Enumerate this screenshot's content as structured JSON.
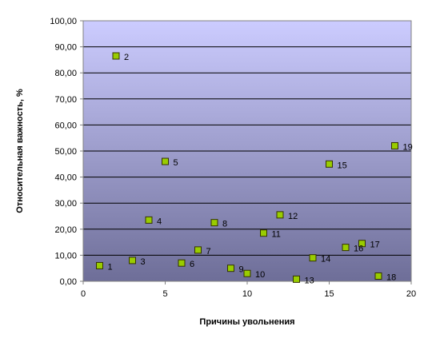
{
  "chart_data": {
    "type": "scatter",
    "xlabel": "Причины увольнения",
    "ylabel": "Относительная важность, %",
    "xlim": [
      0,
      20
    ],
    "ylim": [
      0,
      100
    ],
    "x_ticks": [
      "0",
      "5",
      "10",
      "15",
      "20"
    ],
    "y_ticks": [
      "0,00",
      "10,00",
      "20,00",
      "30,00",
      "40,00",
      "50,00",
      "60,00",
      "70,00",
      "80,00",
      "90,00",
      "100,00"
    ],
    "grid": true,
    "legend": "none",
    "colors": {
      "marker_fill": "#99CC00",
      "marker_stroke": "#333300",
      "plot_top": "#CCCCFF",
      "plot_bottom": "#6E6E98",
      "gridline": "#000000"
    },
    "points": [
      {
        "x": 1,
        "y": 6.0,
        "label": "1"
      },
      {
        "x": 2,
        "y": 86.5,
        "label": "2"
      },
      {
        "x": 3,
        "y": 8.0,
        "label": "3"
      },
      {
        "x": 4,
        "y": 23.5,
        "label": "4"
      },
      {
        "x": 5,
        "y": 46.0,
        "label": "5"
      },
      {
        "x": 6,
        "y": 7.0,
        "label": "6"
      },
      {
        "x": 7,
        "y": 12.0,
        "label": "7"
      },
      {
        "x": 8,
        "y": 22.5,
        "label": "8"
      },
      {
        "x": 9,
        "y": 5.0,
        "label": "9"
      },
      {
        "x": 10,
        "y": 3.0,
        "label": "10"
      },
      {
        "x": 11,
        "y": 18.5,
        "label": "11"
      },
      {
        "x": 12,
        "y": 25.5,
        "label": "12"
      },
      {
        "x": 13,
        "y": 0.8,
        "label": "13"
      },
      {
        "x": 14,
        "y": 9.0,
        "label": "14"
      },
      {
        "x": 15,
        "y": 45.0,
        "label": "15"
      },
      {
        "x": 16,
        "y": 13.0,
        "label": "16"
      },
      {
        "x": 17,
        "y": 14.5,
        "label": "17"
      },
      {
        "x": 18,
        "y": 2.0,
        "label": "18"
      },
      {
        "x": 19,
        "y": 52.0,
        "label": "19"
      }
    ]
  }
}
